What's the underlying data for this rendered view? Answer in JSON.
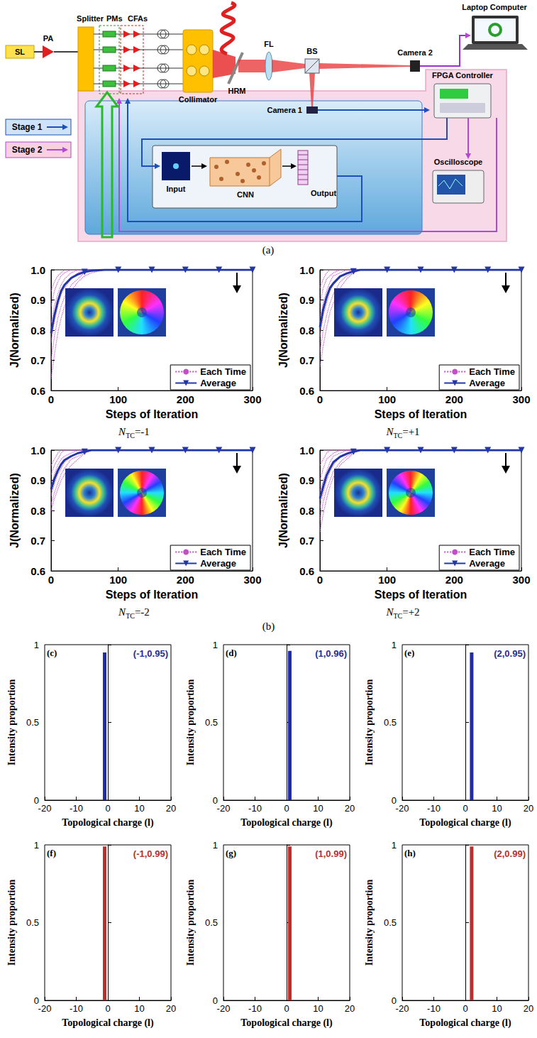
{
  "diagram": {
    "caption": "(a)",
    "labels": {
      "sl": "SL",
      "pa": "PA",
      "splitter": "Splitter",
      "pms": "PMs",
      "cfas": "CFAs",
      "collimator": "Collimator",
      "hrm": "HRM",
      "fl": "FL",
      "bs": "BS",
      "camera2": "Camera 2",
      "laptop": "Laptop Computer",
      "fpga": "FPGA Controller",
      "camera1": "Camera 1",
      "stage1": "Stage 1",
      "stage2": "Stage 2",
      "input": "Input",
      "cnn": "CNN",
      "output": "Output",
      "oscilloscope": "Oscilloscope"
    }
  },
  "b_caption": "(b)",
  "chart_data": [
    {
      "type": "line",
      "x_label": "Steps of Iteration",
      "y_label": "J(Normalized)",
      "caption": [
        "N",
        "TC",
        "=-1"
      ],
      "topological_charge": -1,
      "xlim": [
        0,
        300
      ],
      "xticks": [
        0,
        100,
        200,
        300
      ],
      "ylim": [
        0.6,
        1
      ],
      "yticks": [
        0.6,
        0.7,
        0.8,
        0.9,
        {
          "value": 1,
          "label": "1.0"
        }
      ],
      "legend": "lower right",
      "x": [
        0,
        5,
        10,
        15,
        20,
        30,
        40,
        50,
        60,
        80,
        100,
        150,
        200,
        250,
        300
      ],
      "series": [
        {
          "name": "Each Time",
          "color": "#c34fc8",
          "line_style": "dotted",
          "values": [
            0.64,
            0.72,
            0.79,
            0.84,
            0.88,
            0.93,
            0.96,
            0.98,
            0.99,
            1,
            1,
            1,
            1,
            1,
            1
          ]
        },
        {
          "name": "Each Time",
          "color": "#c34fc8",
          "line_style": "dotted",
          "values": [
            0.7,
            0.78,
            0.84,
            0.88,
            0.91,
            0.95,
            0.97,
            0.99,
            1,
            1,
            1,
            1,
            1,
            1,
            1
          ]
        },
        {
          "name": "Each Time",
          "color": "#c34fc8",
          "line_style": "dotted",
          "values": [
            0.76,
            0.83,
            0.88,
            0.92,
            0.94,
            0.97,
            0.99,
            1,
            1,
            1,
            1,
            1,
            1,
            1,
            1
          ]
        },
        {
          "name": "Each Time",
          "color": "#c34fc8",
          "line_style": "dotted",
          "values": [
            0.82,
            0.88,
            0.92,
            0.95,
            0.97,
            0.99,
            1,
            1,
            1,
            1,
            1,
            1,
            1,
            1,
            1
          ]
        },
        {
          "name": "Each Time",
          "color": "#c34fc8",
          "line_style": "dotted",
          "values": [
            0.88,
            0.93,
            0.96,
            0.98,
            0.99,
            1,
            1,
            1,
            1,
            1,
            1,
            1,
            1,
            1,
            1
          ]
        },
        {
          "name": "Each Time",
          "color": "#c34fc8",
          "line_style": "dotted",
          "values": [
            0.93,
            0.96,
            0.98,
            0.99,
            1,
            1,
            1,
            1,
            1,
            1,
            1,
            1,
            1,
            1,
            1
          ]
        },
        {
          "name": "Average",
          "color": "#2336a8",
          "line_style": "solid",
          "marker": "triangle-down",
          "values": [
            0.79,
            0.85,
            0.895,
            0.93,
            0.95,
            0.973,
            0.985,
            0.993,
            0.997,
            1,
            1,
            1,
            1,
            1,
            1
          ]
        }
      ]
    },
    {
      "type": "line",
      "x_label": "Steps of Iteration",
      "y_label": "J(Normalized)",
      "caption": [
        "N",
        "TC",
        "=+1"
      ],
      "topological_charge": 1,
      "xlim": [
        0,
        300
      ],
      "xticks": [
        0,
        100,
        200,
        300
      ],
      "ylim": [
        0.6,
        1
      ],
      "yticks": [
        0.6,
        0.7,
        0.8,
        0.9,
        {
          "value": 1,
          "label": "1.0"
        }
      ],
      "legend": "lower right",
      "x": [
        0,
        5,
        10,
        15,
        20,
        30,
        40,
        50,
        60,
        80,
        100,
        150,
        200,
        250,
        300
      ],
      "series": [
        {
          "name": "Each Time",
          "color": "#c34fc8",
          "line_style": "dotted",
          "values": [
            0.68,
            0.75,
            0.81,
            0.86,
            0.89,
            0.94,
            0.97,
            0.99,
            1,
            1,
            1,
            1,
            1,
            1,
            1
          ]
        },
        {
          "name": "Each Time",
          "color": "#c34fc8",
          "line_style": "dotted",
          "values": [
            0.73,
            0.8,
            0.85,
            0.89,
            0.92,
            0.96,
            0.98,
            0.99,
            1,
            1,
            1,
            1,
            1,
            1,
            1
          ]
        },
        {
          "name": "Each Time",
          "color": "#c34fc8",
          "line_style": "dotted",
          "values": [
            0.78,
            0.85,
            0.89,
            0.93,
            0.95,
            0.98,
            0.99,
            1,
            1,
            1,
            1,
            1,
            1,
            1,
            1
          ]
        },
        {
          "name": "Each Time",
          "color": "#c34fc8",
          "line_style": "dotted",
          "values": [
            0.84,
            0.89,
            0.93,
            0.96,
            0.98,
            0.99,
            1,
            1,
            1,
            1,
            1,
            1,
            1,
            1,
            1
          ]
        },
        {
          "name": "Each Time",
          "color": "#c34fc8",
          "line_style": "dotted",
          "values": [
            0.89,
            0.94,
            0.97,
            0.98,
            0.99,
            1,
            1,
            1,
            1,
            1,
            1,
            1,
            1,
            1,
            1
          ]
        },
        {
          "name": "Each Time",
          "color": "#c34fc8",
          "line_style": "dotted",
          "values": [
            0.94,
            0.97,
            0.99,
            1,
            1,
            1,
            1,
            1,
            1,
            1,
            1,
            1,
            1,
            1,
            1
          ]
        },
        {
          "name": "Average",
          "color": "#2336a8",
          "line_style": "solid",
          "marker": "triangle-down",
          "values": [
            0.81,
            0.87,
            0.91,
            0.94,
            0.955,
            0.978,
            0.988,
            0.995,
            1,
            1,
            1,
            1,
            1,
            1,
            1
          ]
        }
      ]
    },
    {
      "type": "line",
      "x_label": "Steps of Iteration",
      "y_label": "J(Normalized)",
      "caption": [
        "N",
        "TC",
        "=-2"
      ],
      "topological_charge": -2,
      "xlim": [
        0,
        300
      ],
      "xticks": [
        0,
        100,
        200,
        300
      ],
      "ylim": [
        0.6,
        1
      ],
      "yticks": [
        0.6,
        0.7,
        0.8,
        0.9,
        {
          "value": 1,
          "label": "1.0"
        }
      ],
      "legend": "lower right",
      "x": [
        0,
        5,
        10,
        15,
        20,
        30,
        40,
        50,
        60,
        80,
        100,
        150,
        200,
        250,
        300
      ],
      "series": [
        {
          "name": "Each Time",
          "color": "#c34fc8",
          "line_style": "dotted",
          "values": [
            0.8,
            0.84,
            0.87,
            0.9,
            0.92,
            0.95,
            0.97,
            0.99,
            1,
            1,
            1,
            1,
            1,
            1,
            1
          ]
        },
        {
          "name": "Each Time",
          "color": "#c34fc8",
          "line_style": "dotted",
          "values": [
            0.82,
            0.86,
            0.89,
            0.92,
            0.94,
            0.97,
            0.98,
            0.99,
            1,
            1,
            1,
            1,
            1,
            1,
            1
          ]
        },
        {
          "name": "Each Time",
          "color": "#c34fc8",
          "line_style": "dotted",
          "values": [
            0.85,
            0.89,
            0.92,
            0.94,
            0.96,
            0.98,
            0.99,
            1,
            1,
            1,
            1,
            1,
            1,
            1,
            1
          ]
        },
        {
          "name": "Each Time",
          "color": "#c34fc8",
          "line_style": "dotted",
          "values": [
            0.88,
            0.92,
            0.95,
            0.97,
            0.98,
            0.99,
            1,
            1,
            1,
            1,
            1,
            1,
            1,
            1,
            1
          ]
        },
        {
          "name": "Each Time",
          "color": "#c34fc8",
          "line_style": "dotted",
          "values": [
            0.92,
            0.95,
            0.97,
            0.99,
            1,
            1,
            1,
            1,
            1,
            1,
            1,
            1,
            1,
            1,
            1
          ]
        },
        {
          "name": "Each Time",
          "color": "#c34fc8",
          "line_style": "dotted",
          "values": [
            0.95,
            0.97,
            0.99,
            1,
            1,
            1,
            1,
            1,
            1,
            1,
            1,
            1,
            1,
            1,
            1
          ]
        },
        {
          "name": "Average",
          "color": "#2336a8",
          "line_style": "solid",
          "marker": "triangle-down",
          "values": [
            0.87,
            0.905,
            0.932,
            0.953,
            0.967,
            0.98,
            0.99,
            0.995,
            1,
            1,
            1,
            1,
            1,
            1,
            1
          ]
        }
      ]
    },
    {
      "type": "line",
      "x_label": "Steps of Iteration",
      "y_label": "J(Normalized)",
      "caption": [
        "N",
        "TC",
        "=+2"
      ],
      "topological_charge": 2,
      "xlim": [
        0,
        300
      ],
      "xticks": [
        0,
        100,
        200,
        300
      ],
      "ylim": [
        0.6,
        1
      ],
      "yticks": [
        0.6,
        0.7,
        0.8,
        0.9,
        {
          "value": 1,
          "label": "1.0"
        }
      ],
      "legend": "lower right",
      "x": [
        0,
        5,
        10,
        15,
        20,
        30,
        40,
        50,
        60,
        80,
        100,
        150,
        200,
        250,
        300
      ],
      "series": [
        {
          "name": "Each Time",
          "color": "#c34fc8",
          "line_style": "dotted",
          "values": [
            0.73,
            0.79,
            0.84,
            0.88,
            0.91,
            0.95,
            0.97,
            0.99,
            1,
            1,
            1,
            1,
            1,
            1,
            1
          ]
        },
        {
          "name": "Each Time",
          "color": "#c34fc8",
          "line_style": "dotted",
          "values": [
            0.77,
            0.83,
            0.87,
            0.9,
            0.93,
            0.96,
            0.98,
            0.99,
            1,
            1,
            1,
            1,
            1,
            1,
            1
          ]
        },
        {
          "name": "Each Time",
          "color": "#c34fc8",
          "line_style": "dotted",
          "values": [
            0.81,
            0.86,
            0.9,
            0.93,
            0.95,
            0.98,
            0.99,
            1,
            1,
            1,
            1,
            1,
            1,
            1,
            1
          ]
        },
        {
          "name": "Each Time",
          "color": "#c34fc8",
          "line_style": "dotted",
          "values": [
            0.86,
            0.9,
            0.93,
            0.96,
            0.98,
            0.99,
            1,
            1,
            1,
            1,
            1,
            1,
            1,
            1,
            1
          ]
        },
        {
          "name": "Each Time",
          "color": "#c34fc8",
          "line_style": "dotted",
          "values": [
            0.9,
            0.94,
            0.97,
            0.98,
            0.99,
            1,
            1,
            1,
            1,
            1,
            1,
            1,
            1,
            1,
            1
          ]
        },
        {
          "name": "Each Time",
          "color": "#c34fc8",
          "line_style": "dotted",
          "values": [
            0.95,
            0.97,
            0.99,
            1,
            1,
            1,
            1,
            1,
            1,
            1,
            1,
            1,
            1,
            1,
            1
          ]
        },
        {
          "name": "Average",
          "color": "#2336a8",
          "line_style": "solid",
          "marker": "triangle-down",
          "values": [
            0.84,
            0.88,
            0.917,
            0.94,
            0.96,
            0.978,
            0.988,
            0.995,
            1,
            1,
            1,
            1,
            1,
            1,
            1
          ]
        }
      ]
    },
    {
      "type": "bar",
      "panel": "(c)",
      "annotation": "(-1,0.95)",
      "x_label": "Topological charge (l)",
      "y_label": "Intensity proportion",
      "xlim": [
        -20,
        20
      ],
      "xticks": [
        -20,
        -10,
        0,
        10,
        20
      ],
      "ylim": [
        0,
        1
      ],
      "yticks": [
        0,
        0.5,
        1
      ],
      "x": [
        -1
      ],
      "values": [
        0.95
      ],
      "color": "#1f2d9e"
    },
    {
      "type": "bar",
      "panel": "(d)",
      "annotation": "(1,0.96)",
      "x_label": "Topological charge (l)",
      "y_label": "Intensity proportion",
      "xlim": [
        -20,
        20
      ],
      "xticks": [
        -20,
        -10,
        0,
        10,
        20
      ],
      "ylim": [
        0,
        1
      ],
      "yticks": [
        0,
        0.5,
        1
      ],
      "x": [
        1
      ],
      "values": [
        0.96
      ],
      "color": "#1f2d9e"
    },
    {
      "type": "bar",
      "panel": "(e)",
      "annotation": "(2,0.95)",
      "x_label": "Topological charge (l)",
      "y_label": "Intensity proportion",
      "xlim": [
        -20,
        20
      ],
      "xticks": [
        -20,
        -10,
        0,
        10,
        20
      ],
      "ylim": [
        0,
        1
      ],
      "yticks": [
        0,
        0.5,
        1
      ],
      "x": [
        2
      ],
      "values": [
        0.95
      ],
      "color": "#1f2d9e"
    },
    {
      "type": "bar",
      "panel": "(f)",
      "annotation": "(-1,0.99)",
      "x_label": "Topological charge (l)",
      "y_label": "Intensity proportion",
      "xlim": [
        -20,
        20
      ],
      "xticks": [
        -20,
        -10,
        0,
        10,
        20
      ],
      "ylim": [
        0,
        1
      ],
      "yticks": [
        0,
        0.5,
        1
      ],
      "x": [
        -1
      ],
      "values": [
        0.99
      ],
      "color": "#b8302e"
    },
    {
      "type": "bar",
      "panel": "(g)",
      "annotation": "(1,0.99)",
      "x_label": "Topological charge (l)",
      "y_label": "Intensity proportion",
      "xlim": [
        -20,
        20
      ],
      "xticks": [
        -20,
        -10,
        0,
        10,
        20
      ],
      "ylim": [
        0,
        1
      ],
      "yticks": [
        0,
        0.5,
        1
      ],
      "x": [
        1
      ],
      "values": [
        0.99
      ],
      "color": "#b8302e"
    },
    {
      "type": "bar",
      "panel": "(h)",
      "annotation": "(2,0.99)",
      "x_label": "Topological charge (l)",
      "y_label": "Intensity proportion",
      "xlim": [
        -20,
        20
      ],
      "xticks": [
        -20,
        -10,
        0,
        10,
        20
      ],
      "ylim": [
        0,
        1
      ],
      "yticks": [
        0,
        0.5,
        1
      ],
      "x": [
        2
      ],
      "values": [
        0.99
      ],
      "color": "#b8302e"
    }
  ]
}
